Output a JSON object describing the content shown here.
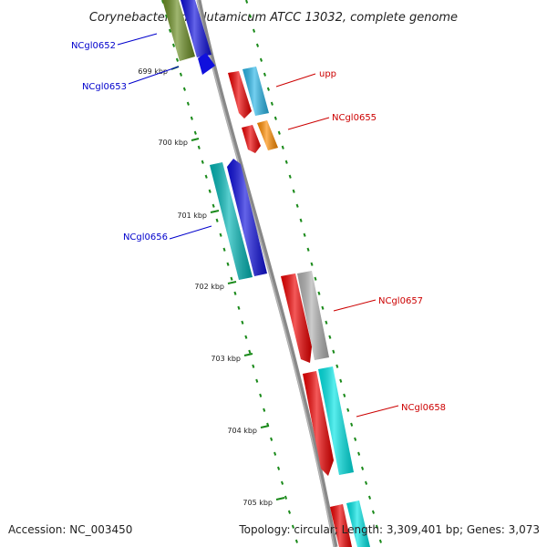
{
  "title": "Corynebacterium glutamicum ATCC 13032, complete genome",
  "footer": {
    "accession": "Accession: NC_003450",
    "summary": "Topology: circular; Length: 3,309,401 bp; Genes: 3,073"
  },
  "colors": {
    "backbone": "#888888",
    "tick": "#1a8a1a",
    "forward_label": "#cc0000",
    "reverse_label": "#0000cc"
  },
  "kbp_labels": [
    "699 kbp",
    "700 kbp",
    "701 kbp",
    "702 kbp",
    "703 kbp",
    "704 kbp",
    "705 kbp"
  ],
  "gene_labels": [
    {
      "name": "NCgl0652",
      "strand": "reverse"
    },
    {
      "name": "NCgl0653",
      "strand": "reverse"
    },
    {
      "name": "upp",
      "strand": "forward"
    },
    {
      "name": "NCgl0655",
      "strand": "forward"
    },
    {
      "name": "NCgl0656",
      "strand": "reverse"
    },
    {
      "name": "NCgl0657",
      "strand": "forward"
    },
    {
      "name": "NCgl0658",
      "strand": "forward"
    }
  ]
}
